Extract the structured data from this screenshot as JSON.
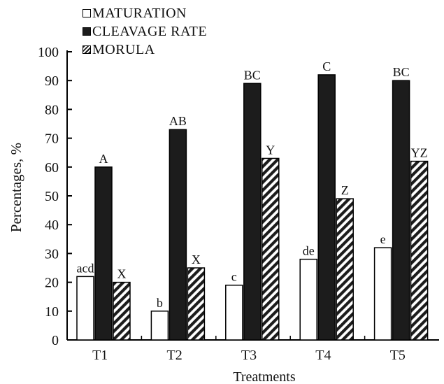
{
  "chart_data": {
    "type": "bar",
    "xlabel": "Treatments",
    "ylabel": "Percentages, %",
    "ylim": [
      0,
      100
    ],
    "yticks": [
      0,
      10,
      20,
      30,
      40,
      50,
      60,
      70,
      80,
      90,
      100
    ],
    "categories": [
      "T1",
      "T2",
      "T3",
      "T4",
      "T5"
    ],
    "legend_position": "top-left",
    "series": [
      {
        "name": "MATURATION",
        "fill": "open",
        "color": "#ffffff",
        "values": [
          22,
          10,
          19,
          28,
          32
        ],
        "labels": [
          "acd",
          "b",
          "c",
          "de",
          "e"
        ]
      },
      {
        "name": "CLEAVAGE RATE",
        "fill": "solid",
        "color": "#1c1c1c",
        "values": [
          60,
          73,
          89,
          92,
          90
        ],
        "labels": [
          "A",
          "AB",
          "BC",
          "C",
          "BC"
        ]
      },
      {
        "name": "MORULA",
        "fill": "hatched",
        "color": "#1c1c1c",
        "values": [
          20,
          25,
          63,
          49,
          62
        ],
        "labels": [
          "X",
          "X",
          "Y",
          "Z",
          "YZ"
        ]
      }
    ]
  }
}
